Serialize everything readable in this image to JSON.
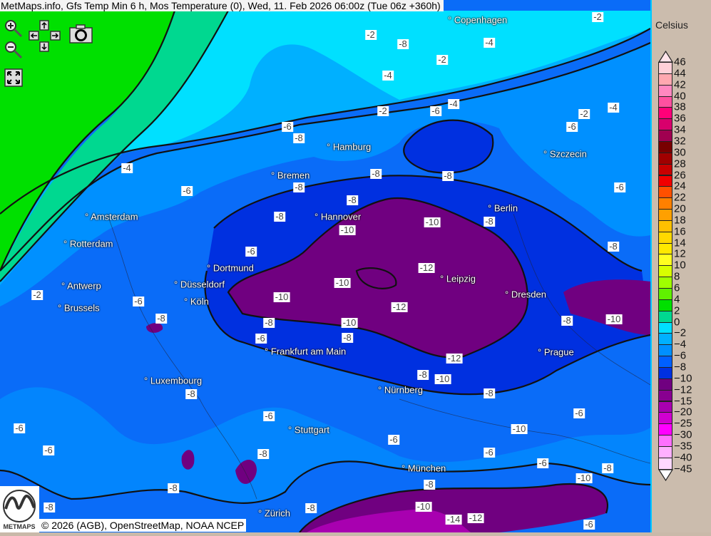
{
  "title": "MetMaps.info, Gfs Temp Min 6 h, Mos Temperature (0), Wed, 11. Feb 2026 06:00z (Tue 06z +360h)",
  "controls": {
    "zoom_in": "zoom-in-icon",
    "zoom_out": "zoom-out-icon",
    "pan": "pan-arrows-icon",
    "snapshot": "camera-icon",
    "fullscreen": "fullscreen-icon"
  },
  "copyright": "© 2026 (AGB), OpenStreetMap, NOAA NCEP",
  "logo_text": "METMAPS",
  "cities": [
    "Copenhagen",
    "Hamburg",
    "Szczecin",
    "Bremen",
    "Amsterdam",
    "Hannover",
    "Berlin",
    "Rotterdam",
    "Dortmund",
    "Leipzig",
    "Antwerp",
    "Düsseldorf",
    "Dresden",
    "Brussels",
    "Köln",
    "Frankfurt am Main",
    "Prague",
    "Luxembourg",
    "Nürnberg",
    "Stuttgart",
    "München",
    "Zürich"
  ],
  "contour_labels": [
    "-2",
    "-8",
    "-2",
    "-4",
    "-4",
    "-2",
    "-2",
    "-6",
    "-4",
    "-2",
    "-4",
    "-6",
    "-6",
    "-8",
    "-4",
    "-6",
    "-8",
    "-8",
    "-8",
    "-8",
    "-6",
    "-8",
    "-10",
    "-10",
    "-8",
    "-6",
    "-8",
    "-12",
    "-10",
    "-10",
    "-2",
    "-6",
    "-8",
    "-12",
    "-8",
    "-10",
    "-8",
    "-10",
    "-8",
    "-6",
    "-12",
    "-8",
    "-10",
    "-8",
    "-8",
    "-6",
    "-6",
    "-6",
    "-10",
    "-6",
    "-6",
    "-8",
    "-6",
    "-6",
    "-8",
    "-10",
    "-8",
    "-8",
    "-8",
    "-10",
    "-14",
    "-12",
    "-6",
    "-8"
  ],
  "legend": {
    "unit": "Celsius",
    "labels": [
      "46",
      "44",
      "42",
      "40",
      "38",
      "36",
      "34",
      "32",
      "30",
      "28",
      "26",
      "24",
      "22",
      "20",
      "18",
      "16",
      "14",
      "12",
      "10",
      "8",
      "6",
      "4",
      "2",
      "0",
      "−2",
      "−4",
      "−6",
      "−8",
      "−10",
      "−12",
      "−15",
      "−20",
      "−25",
      "−30",
      "−35",
      "−40",
      "−45"
    ],
    "colors": [
      "#ffd0d8",
      "#ffa8b0",
      "#ff88c0",
      "#ff50a0",
      "#ff0078",
      "#d8006c",
      "#a00050",
      "#780000",
      "#a00000",
      "#c80000",
      "#f00000",
      "#ff5000",
      "#ff8000",
      "#ffa000",
      "#ffc000",
      "#ffd800",
      "#ffe800",
      "#ffff20",
      "#d8ff00",
      "#a0ff00",
      "#60f000",
      "#00e000",
      "#00d890",
      "#00e0ff",
      "#00b0ff",
      "#0090ff",
      "#0060ff",
      "#0030e0",
      "#700080",
      "#880090",
      "#a800b0",
      "#d000d0",
      "#ff00ff",
      "#ff70ff",
      "#ffb0ff",
      "#ffd8ff"
    ]
  },
  "map_colors": {
    "green": "#00e000",
    "teal": "#00d890",
    "cyan": "#00e0ff",
    "light_blue": "#00b0ff",
    "mid_blue": "#0090ff",
    "blue": "#0a6cf8",
    "dark_blue": "#0030e0",
    "purple": "#700080",
    "violet": "#a800b0"
  }
}
